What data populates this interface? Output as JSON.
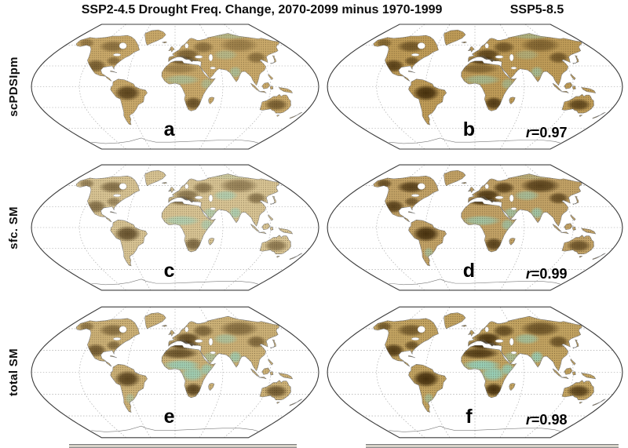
{
  "header": {
    "left": "SSP2-4.5",
    "center": "Drought Freq. Change, 2070-2099 minus 1970-1999",
    "right": "SSP5-8.5"
  },
  "rows": [
    {
      "label": "scPDSIpm"
    },
    {
      "label": "sfc. SM"
    },
    {
      "label": "total SM"
    }
  ],
  "colors": {
    "text": "#0d0d0d",
    "dry_dark": "#3a2505",
    "wet_cyan": "#8fd8c9",
    "stipple": "rgba(42,27,6,0.55)",
    "graticule": "#9a9a9a",
    "coastline": "#6e6e6e",
    "map_border": "#3c3c3c",
    "colorbar_edge": "#8a8a8a"
  },
  "panels": [
    {
      "letter": "a",
      "scenario": "SSP2-4.5",
      "variable": "scPDSIpm",
      "base": "#c9a96a",
      "dry": [
        [
          "canada",
          0.45
        ],
        [
          "alaska_nw",
          0.4
        ],
        [
          "mexico_usa",
          0.6
        ],
        [
          "east_usa",
          0.45
        ],
        [
          "amazon",
          0.8
        ],
        [
          "europe",
          0.55
        ],
        [
          "mediterranean",
          0.65
        ],
        [
          "west_russia",
          0.45
        ],
        [
          "siberia_dry",
          0.35
        ],
        [
          "east_asia",
          0.45
        ],
        [
          "southern_africa",
          0.7
        ],
        [
          "australia_dry",
          0.6
        ],
        [
          "north_africa",
          0.3
        ]
      ],
      "wet": [
        [
          "sahel",
          0.45
        ],
        [
          "east_africa",
          0.4
        ],
        [
          "india",
          0.5
        ],
        [
          "central_asia",
          0.35
        ],
        [
          "north_siberia",
          0.35
        ]
      ]
    },
    {
      "letter": "b",
      "r_symbol": "r",
      "r_text": "=0.97",
      "scenario": "SSP5-8.5",
      "variable": "scPDSIpm",
      "base": "#bf9c58",
      "dry": [
        [
          "canada",
          0.6
        ],
        [
          "alaska_nw",
          0.5
        ],
        [
          "mexico_usa",
          0.8
        ],
        [
          "east_usa",
          0.6
        ],
        [
          "amazon",
          0.95
        ],
        [
          "europe",
          0.75
        ],
        [
          "mediterranean",
          0.85
        ],
        [
          "west_russia",
          0.6
        ],
        [
          "siberia_dry",
          0.5
        ],
        [
          "east_asia",
          0.6
        ],
        [
          "southern_africa",
          0.85
        ],
        [
          "australia_dry",
          0.75
        ],
        [
          "north_africa",
          0.45
        ]
      ],
      "wet": [
        [
          "sahel",
          0.5
        ],
        [
          "east_africa",
          0.45
        ],
        [
          "india",
          0.55
        ],
        [
          "central_asia",
          0.3
        ],
        [
          "north_siberia",
          0.4
        ]
      ]
    },
    {
      "letter": "c",
      "scenario": "SSP2-4.5",
      "variable": "sfc. SM",
      "base": "#d8c494",
      "dry": [
        [
          "canada",
          0.55
        ],
        [
          "alaska_nw",
          0.45
        ],
        [
          "mexico_usa",
          0.55
        ],
        [
          "east_usa",
          0.4
        ],
        [
          "amazon",
          0.75
        ],
        [
          "europe",
          0.5
        ],
        [
          "mediterranean",
          0.55
        ],
        [
          "west_russia",
          0.5
        ],
        [
          "siberia_dry",
          0.45
        ],
        [
          "east_asia",
          0.5
        ],
        [
          "southern_africa",
          0.6
        ],
        [
          "australia_dry",
          0.5
        ]
      ],
      "wet": [
        [
          "sahel",
          0.55
        ],
        [
          "arabia",
          0.5
        ],
        [
          "east_africa",
          0.5
        ],
        [
          "india",
          0.6
        ],
        [
          "central_asia",
          0.55
        ],
        [
          "north_siberia",
          0.2
        ]
      ]
    },
    {
      "letter": "d",
      "r_symbol": "r",
      "r_text": "=0.99",
      "scenario": "SSP5-8.5",
      "variable": "sfc. SM",
      "base": "#c2a266",
      "dry": [
        [
          "canada",
          0.8
        ],
        [
          "alaska_nw",
          0.7
        ],
        [
          "mexico_usa",
          0.8
        ],
        [
          "east_usa",
          0.6
        ],
        [
          "amazon",
          0.95
        ],
        [
          "europe",
          0.85
        ],
        [
          "mediterranean",
          0.9
        ],
        [
          "west_russia",
          0.8
        ],
        [
          "siberia_dry",
          0.8
        ],
        [
          "east_asia",
          0.7
        ],
        [
          "southern_africa",
          0.8
        ],
        [
          "australia_dry",
          0.65
        ]
      ],
      "wet": [
        [
          "sahel",
          0.65
        ],
        [
          "arabia",
          0.6
        ],
        [
          "east_africa",
          0.6
        ],
        [
          "india",
          0.7
        ],
        [
          "central_asia",
          0.55
        ],
        [
          "argentina",
          0.5
        ],
        [
          "north_siberia",
          0.2
        ]
      ]
    },
    {
      "letter": "e",
      "scenario": "SSP2-4.5",
      "variable": "total SM",
      "base": "#ccb177",
      "dry": [
        [
          "canada",
          0.5
        ],
        [
          "alaska_nw",
          0.45
        ],
        [
          "mexico_usa",
          0.65
        ],
        [
          "east_usa",
          0.5
        ],
        [
          "amazon",
          0.8
        ],
        [
          "europe",
          0.75
        ],
        [
          "mediterranean",
          0.9
        ],
        [
          "north_africa",
          0.7
        ],
        [
          "west_russia",
          0.55
        ],
        [
          "siberia_dry",
          0.5
        ],
        [
          "east_asia",
          0.55
        ],
        [
          "southern_africa",
          0.8
        ],
        [
          "australia_dry",
          0.65
        ]
      ],
      "wet": [
        [
          "sahel",
          0.8
        ],
        [
          "central_africa",
          0.8
        ],
        [
          "east_africa",
          0.7
        ],
        [
          "india",
          0.7
        ],
        [
          "arabia",
          0.45
        ],
        [
          "central_asia",
          0.5
        ],
        [
          "argentina",
          0.4
        ]
      ]
    },
    {
      "letter": "f",
      "r_symbol": "r",
      "r_text": "=0.98",
      "scenario": "SSP5-8.5",
      "variable": "total SM",
      "base": "#c2a361",
      "dry": [
        [
          "canada",
          0.6
        ],
        [
          "alaska_nw",
          0.6
        ],
        [
          "mexico_usa",
          0.85
        ],
        [
          "east_usa",
          0.65
        ],
        [
          "amazon",
          0.95
        ],
        [
          "europe",
          0.9
        ],
        [
          "mediterranean",
          1.0
        ],
        [
          "north_africa",
          0.85
        ],
        [
          "west_russia",
          0.7
        ],
        [
          "siberia_dry",
          0.65
        ],
        [
          "east_asia",
          0.65
        ],
        [
          "southern_africa",
          0.95
        ],
        [
          "australia_dry",
          0.8
        ]
      ],
      "wet": [
        [
          "sahel",
          0.9
        ],
        [
          "central_africa",
          0.9
        ],
        [
          "east_africa",
          0.8
        ],
        [
          "india",
          0.8
        ],
        [
          "arabia",
          0.5
        ],
        [
          "central_asia",
          0.6
        ],
        [
          "argentina",
          0.5
        ]
      ]
    }
  ]
}
